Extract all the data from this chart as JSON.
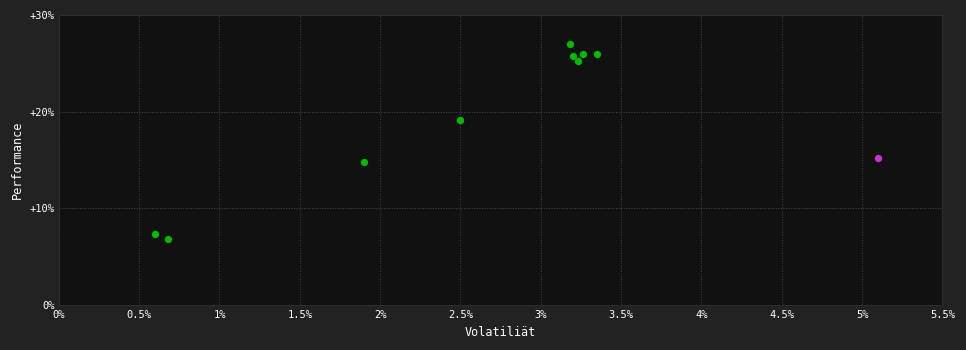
{
  "xlabel": "Volatiliät",
  "ylabel": "Performance",
  "background_color": "#111111",
  "plot_bg_color": "#111111",
  "outer_bg_color": "#222222",
  "grid_color": "#444444",
  "text_color": "#ffffff",
  "xlim": [
    0.0,
    0.055
  ],
  "ylim": [
    0.0,
    0.3
  ],
  "xtick_labels": [
    "0%",
    "0.5%",
    "1%",
    "1.5%",
    "2%",
    "2.5%",
    "3%",
    "3.5%",
    "4%",
    "4.5%",
    "5%",
    "5.5%"
  ],
  "xtick_values": [
    0.0,
    0.005,
    0.01,
    0.015,
    0.02,
    0.025,
    0.03,
    0.035,
    0.04,
    0.045,
    0.05,
    0.055
  ],
  "ytick_labels": [
    "0%",
    "+10%",
    "+20%",
    "+30%"
  ],
  "ytick_values": [
    0.0,
    0.1,
    0.2,
    0.3
  ],
  "green_points": [
    [
      0.006,
      0.073
    ],
    [
      0.0068,
      0.068
    ],
    [
      0.019,
      0.148
    ],
    [
      0.025,
      0.191
    ],
    [
      0.0318,
      0.27
    ],
    [
      0.032,
      0.258
    ],
    [
      0.0323,
      0.252
    ],
    [
      0.0326,
      0.26
    ],
    [
      0.0335,
      0.26
    ]
  ],
  "magenta_points": [
    [
      0.051,
      0.152
    ]
  ],
  "green_color": "#00bb00",
  "magenta_color": "#cc33cc",
  "point_size": 28,
  "font_family": "monospace"
}
